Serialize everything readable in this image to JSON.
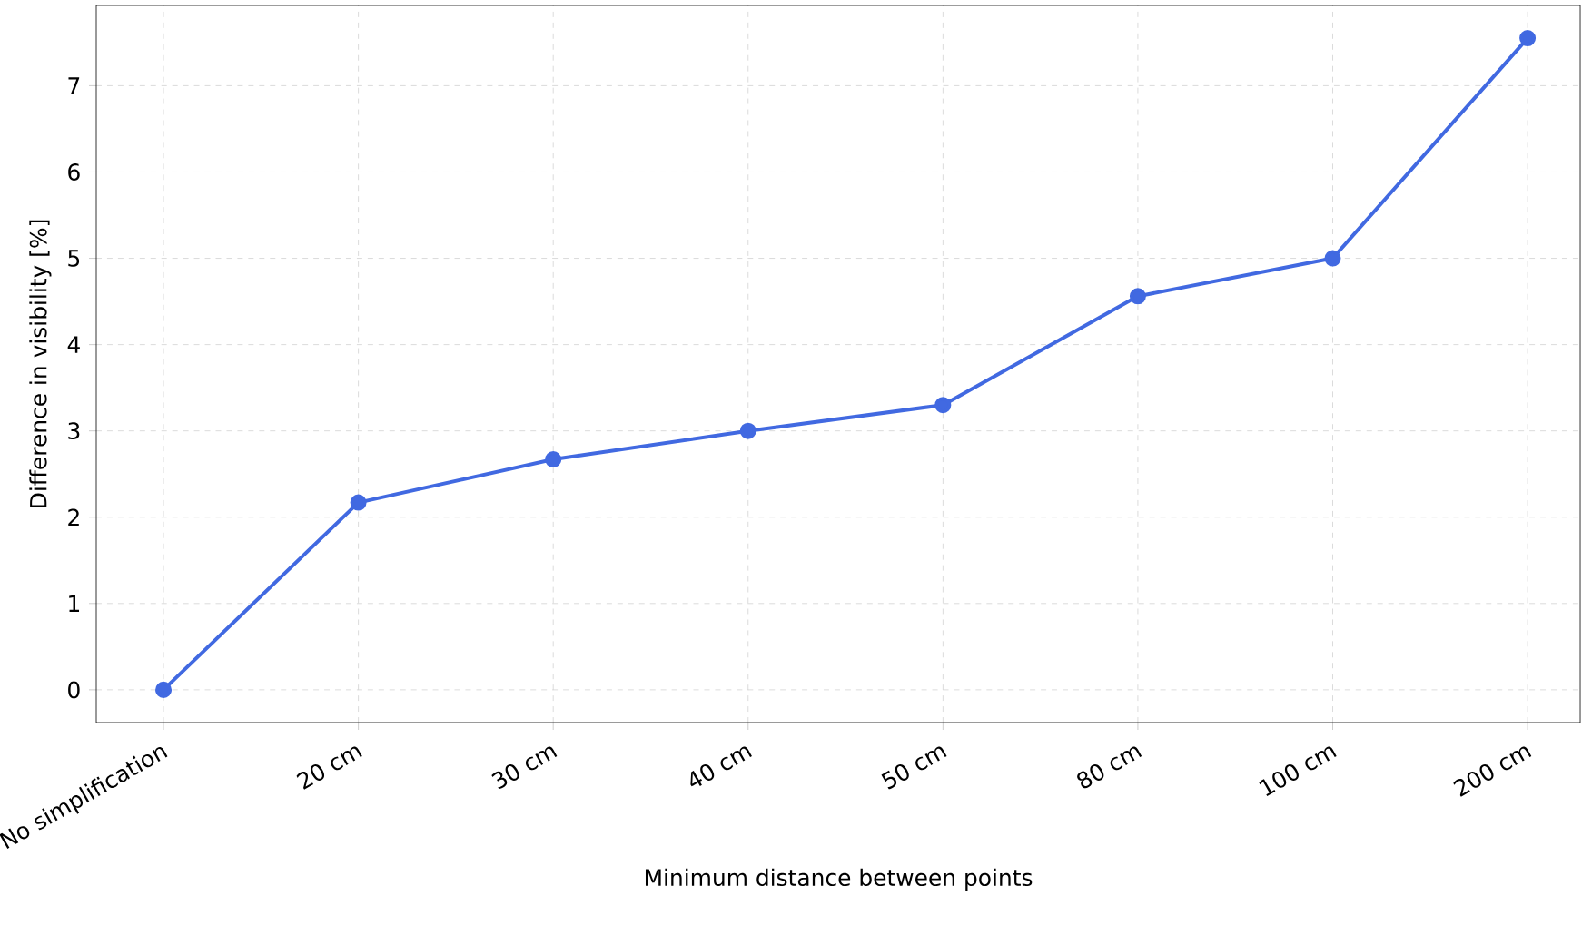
{
  "chart_data": {
    "type": "line",
    "xlabel": "Minimum distance between points",
    "ylabel": "Difference in visibility [%]",
    "categories": [
      "No simplification",
      "20 cm",
      "30 cm",
      "40 cm",
      "50 cm",
      "80 cm",
      "100 cm",
      "200 cm"
    ],
    "values": [
      0,
      2.17,
      2.67,
      3.0,
      3.3,
      4.56,
      5.0,
      7.55
    ],
    "color": "#4169e1",
    "ylim": [
      -0.38,
      7.93
    ],
    "yticks": [
      0,
      1,
      2,
      3,
      4,
      5,
      6,
      7
    ],
    "grid": true,
    "marker": "circle",
    "line_style": "solid"
  }
}
